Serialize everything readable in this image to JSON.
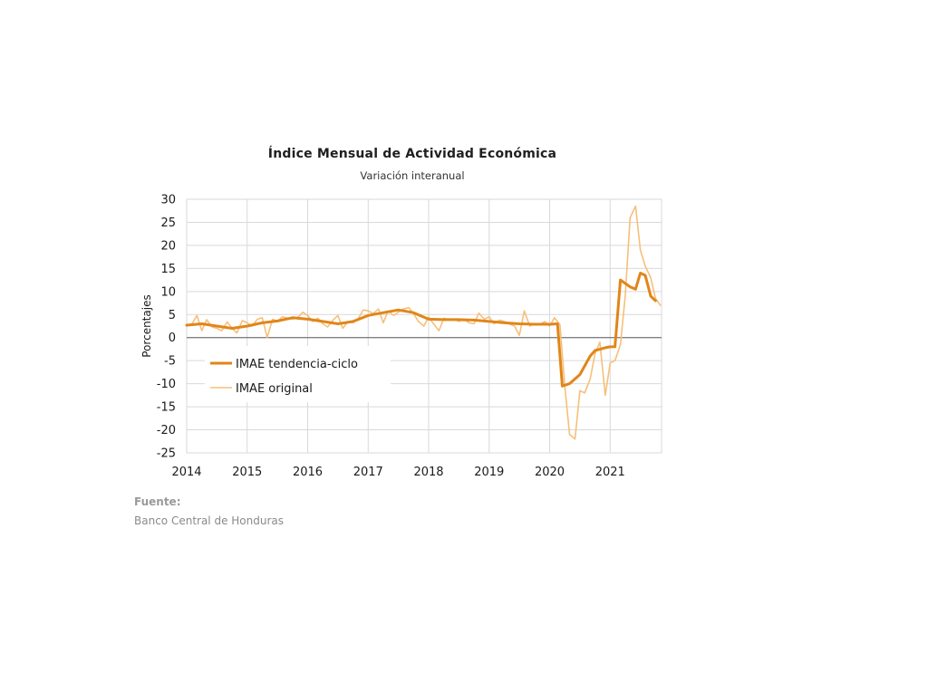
{
  "chart_data": {
    "type": "line",
    "title": "Índice Mensual de  Actividad Económica",
    "subtitle": "Variación interanual",
    "ylabel": "Porcentajes",
    "xlabel": "",
    "ylim": [
      -25,
      30
    ],
    "yticks": [
      30,
      25,
      20,
      15,
      10,
      5,
      0,
      -5,
      -10,
      -15,
      -20,
      -25
    ],
    "xlim": [
      2014,
      2021.85
    ],
    "xticks": [
      "2014",
      "2015",
      "2016",
      "2017",
      "2018",
      "2019",
      "2020",
      "2021"
    ],
    "grid": true,
    "legend_position": "left",
    "series": [
      {
        "name": "IMAE tendencia-ciclo",
        "color": "#e0861a",
        "points": [
          [
            2014.0,
            2.7
          ],
          [
            2014.25,
            3.0
          ],
          [
            2014.5,
            2.5
          ],
          [
            2014.75,
            2.0
          ],
          [
            2015.0,
            2.5
          ],
          [
            2015.25,
            3.2
          ],
          [
            2015.5,
            3.6
          ],
          [
            2015.75,
            4.3
          ],
          [
            2016.0,
            4.0
          ],
          [
            2016.25,
            3.5
          ],
          [
            2016.5,
            3.0
          ],
          [
            2016.75,
            3.5
          ],
          [
            2017.0,
            4.8
          ],
          [
            2017.25,
            5.4
          ],
          [
            2017.5,
            6.0
          ],
          [
            2017.75,
            5.4
          ],
          [
            2018.0,
            4.0
          ],
          [
            2018.25,
            3.9
          ],
          [
            2018.5,
            3.9
          ],
          [
            2018.75,
            3.8
          ],
          [
            2019.0,
            3.5
          ],
          [
            2019.25,
            3.2
          ],
          [
            2019.5,
            3.0
          ],
          [
            2019.75,
            2.9
          ],
          [
            2020.0,
            2.9
          ],
          [
            2020.13,
            3.0
          ],
          [
            2020.21,
            -10.5
          ],
          [
            2020.33,
            -10.0
          ],
          [
            2020.5,
            -8.0
          ],
          [
            2020.67,
            -4.0
          ],
          [
            2020.75,
            -2.8
          ],
          [
            2020.92,
            -2.2
          ],
          [
            2021.0,
            -2.0
          ],
          [
            2021.08,
            -2.0
          ],
          [
            2021.17,
            12.5
          ],
          [
            2021.33,
            11.0
          ],
          [
            2021.42,
            10.5
          ],
          [
            2021.5,
            14.0
          ],
          [
            2021.58,
            13.5
          ],
          [
            2021.67,
            9.0
          ],
          [
            2021.75,
            8.0
          ]
        ]
      },
      {
        "name": "IMAE original",
        "color": "#f7bf7a",
        "points": [
          [
            2014.0,
            2.5
          ],
          [
            2014.08,
            2.8
          ],
          [
            2014.17,
            4.8
          ],
          [
            2014.25,
            1.5
          ],
          [
            2014.33,
            3.9
          ],
          [
            2014.42,
            2.3
          ],
          [
            2014.5,
            2.0
          ],
          [
            2014.58,
            1.5
          ],
          [
            2014.67,
            3.4
          ],
          [
            2014.75,
            2.0
          ],
          [
            2014.83,
            1.0
          ],
          [
            2014.92,
            3.7
          ],
          [
            2015.0,
            3.2
          ],
          [
            2015.08,
            2.5
          ],
          [
            2015.17,
            4.0
          ],
          [
            2015.25,
            4.3
          ],
          [
            2015.33,
            0.0
          ],
          [
            2015.42,
            4.0
          ],
          [
            2015.5,
            3.5
          ],
          [
            2015.58,
            4.5
          ],
          [
            2015.67,
            4.2
          ],
          [
            2015.75,
            4.0
          ],
          [
            2015.83,
            4.3
          ],
          [
            2015.92,
            5.5
          ],
          [
            2016.0,
            4.8
          ],
          [
            2016.08,
            3.5
          ],
          [
            2016.17,
            4.2
          ],
          [
            2016.25,
            3.0
          ],
          [
            2016.33,
            2.3
          ],
          [
            2016.42,
            3.8
          ],
          [
            2016.5,
            4.8
          ],
          [
            2016.58,
            2.0
          ],
          [
            2016.67,
            3.5
          ],
          [
            2016.75,
            3.2
          ],
          [
            2016.83,
            4.0
          ],
          [
            2016.92,
            6.0
          ],
          [
            2017.0,
            5.8
          ],
          [
            2017.08,
            5.2
          ],
          [
            2017.17,
            6.2
          ],
          [
            2017.25,
            3.2
          ],
          [
            2017.33,
            5.8
          ],
          [
            2017.42,
            4.8
          ],
          [
            2017.5,
            5.5
          ],
          [
            2017.58,
            6.2
          ],
          [
            2017.67,
            6.5
          ],
          [
            2017.75,
            5.2
          ],
          [
            2017.83,
            3.5
          ],
          [
            2017.92,
            2.5
          ],
          [
            2018.0,
            4.5
          ],
          [
            2018.08,
            3.0
          ],
          [
            2018.17,
            1.5
          ],
          [
            2018.25,
            4.2
          ],
          [
            2018.33,
            3.8
          ],
          [
            2018.42,
            4.0
          ],
          [
            2018.5,
            3.5
          ],
          [
            2018.58,
            4.0
          ],
          [
            2018.67,
            3.2
          ],
          [
            2018.75,
            3.0
          ],
          [
            2018.83,
            5.3
          ],
          [
            2018.92,
            4.0
          ],
          [
            2019.0,
            4.5
          ],
          [
            2019.08,
            3.0
          ],
          [
            2019.17,
            3.8
          ],
          [
            2019.25,
            3.5
          ],
          [
            2019.33,
            3.0
          ],
          [
            2019.42,
            2.5
          ],
          [
            2019.5,
            0.5
          ],
          [
            2019.58,
            5.8
          ],
          [
            2019.67,
            2.5
          ],
          [
            2019.75,
            3.0
          ],
          [
            2019.83,
            2.8
          ],
          [
            2019.92,
            3.5
          ],
          [
            2020.0,
            2.5
          ],
          [
            2020.08,
            4.3
          ],
          [
            2020.17,
            2.8
          ],
          [
            2020.25,
            -10.5
          ],
          [
            2020.33,
            -21.0
          ],
          [
            2020.42,
            -22.0
          ],
          [
            2020.5,
            -11.5
          ],
          [
            2020.58,
            -12.0
          ],
          [
            2020.67,
            -9.0
          ],
          [
            2020.75,
            -3.5
          ],
          [
            2020.83,
            -1.0
          ],
          [
            2020.92,
            -12.5
          ],
          [
            2021.0,
            -5.5
          ],
          [
            2021.08,
            -5.0
          ],
          [
            2021.17,
            -1.5
          ],
          [
            2021.25,
            9.0
          ],
          [
            2021.33,
            26.0
          ],
          [
            2021.42,
            28.5
          ],
          [
            2021.5,
            19.0
          ],
          [
            2021.58,
            15.5
          ],
          [
            2021.67,
            13.0
          ],
          [
            2021.75,
            8.5
          ],
          [
            2021.83,
            7.0
          ]
        ]
      }
    ]
  },
  "footer": {
    "source_label": "Fuente:",
    "source_text": "Banco Central de Honduras"
  }
}
